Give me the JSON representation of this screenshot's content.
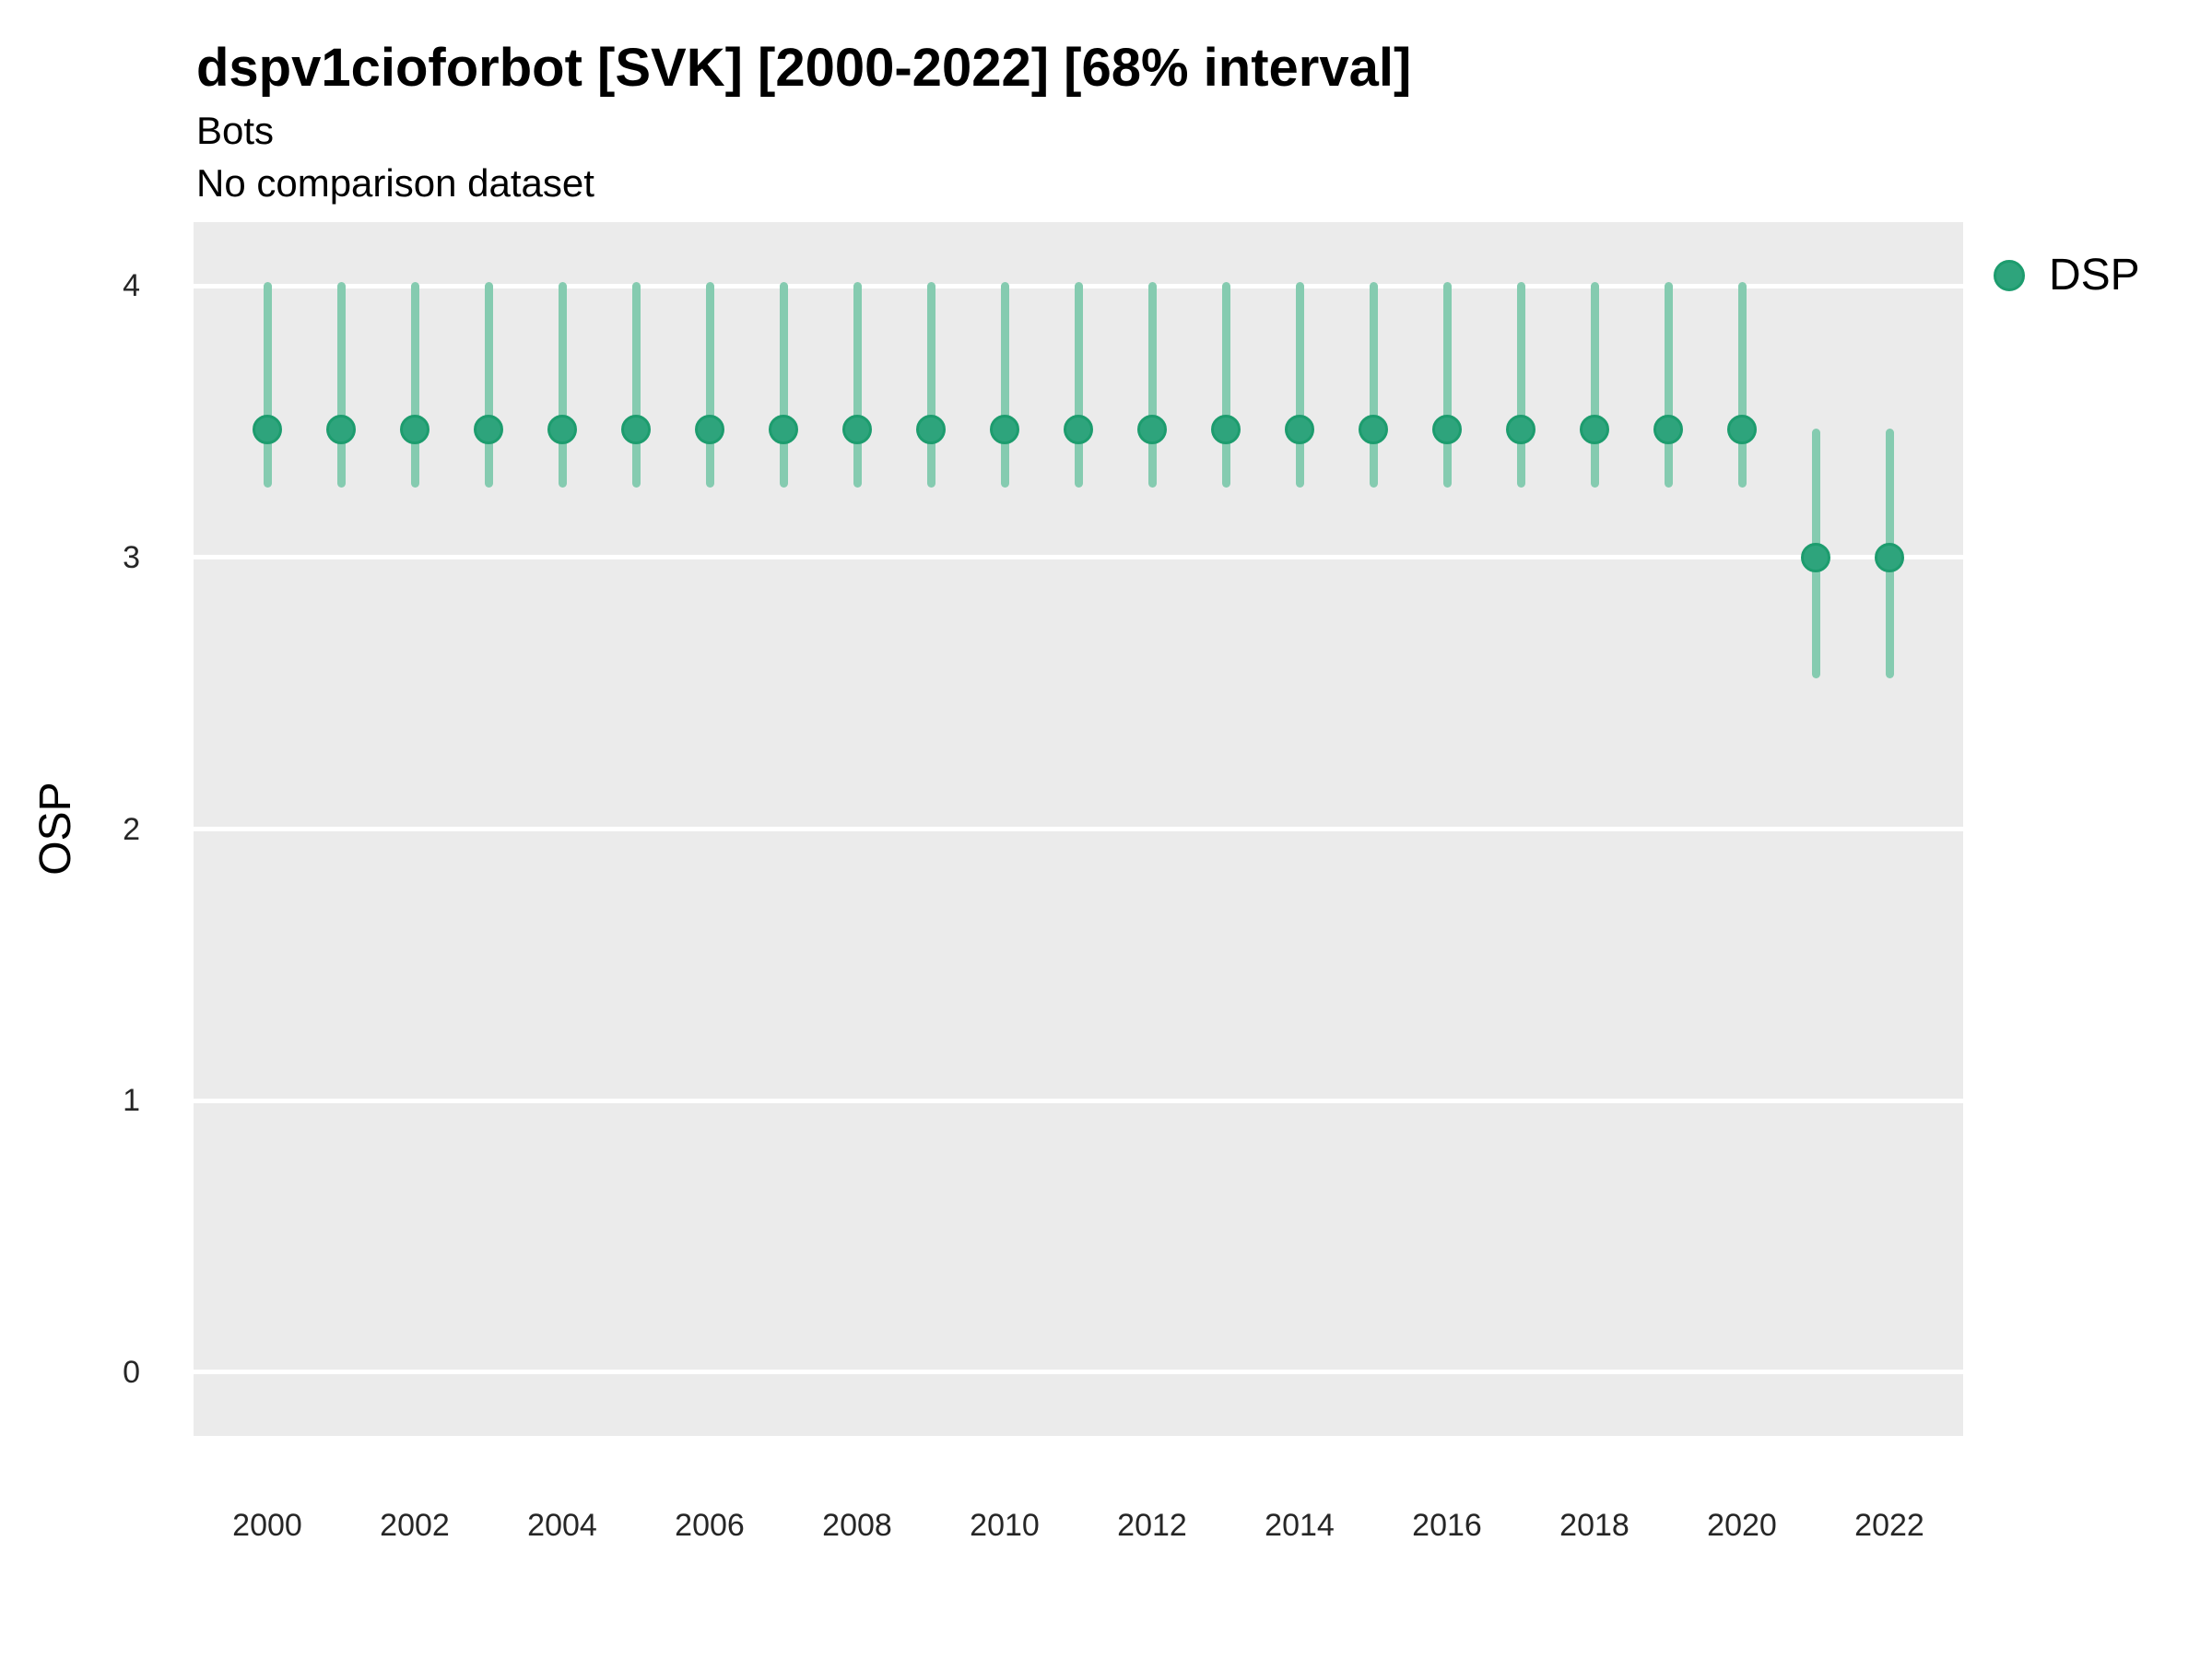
{
  "header": {
    "title": "dspv1cioforbot [SVK] [2000-2022] [68% interval]",
    "subtitle": "Bots",
    "comparison_note": "No comparison dataset"
  },
  "legend": {
    "label": "DSP",
    "marker_icon": "filled-circle-icon"
  },
  "colors": {
    "point_fill": "#2ea47c",
    "point_stroke": "#1d9c6e",
    "interval_bar": "#85cbb0",
    "panel_background": "#ebebeb",
    "gridline": "#ffffff",
    "title_text": "#000000",
    "tick_text": "#262626"
  },
  "chart_data": {
    "type": "scatter",
    "title": "dspv1cioforbot [SVK] [2000-2022] [68% interval]",
    "subtitle": "Bots",
    "note": "No comparison dataset",
    "interval": "68%",
    "xlabel": "",
    "ylabel": "OSP",
    "x_ticks": [
      2000,
      2002,
      2004,
      2006,
      2008,
      2010,
      2012,
      2014,
      2016,
      2018,
      2020,
      2022
    ],
    "y_ticks": [
      0,
      1,
      2,
      3,
      4
    ],
    "xlim": [
      1999,
      2023
    ],
    "ylim": [
      -0.235,
      4.235
    ],
    "grid": "major-horizontal-only",
    "legend_position": "right-top",
    "series": [
      {
        "name": "DSP",
        "x": [
          2000,
          2001,
          2002,
          2003,
          2004,
          2005,
          2006,
          2007,
          2008,
          2009,
          2010,
          2011,
          2012,
          2013,
          2014,
          2015,
          2016,
          2017,
          2018,
          2019,
          2020,
          2021,
          2022
        ],
        "y": [
          3.47,
          3.47,
          3.47,
          3.47,
          3.47,
          3.47,
          3.47,
          3.47,
          3.47,
          3.47,
          3.47,
          3.47,
          3.47,
          3.47,
          3.47,
          3.47,
          3.47,
          3.47,
          3.47,
          3.47,
          3.47,
          3.0,
          3.0
        ],
        "ymin": [
          3.27,
          3.27,
          3.27,
          3.27,
          3.27,
          3.27,
          3.27,
          3.27,
          3.27,
          3.27,
          3.27,
          3.27,
          3.27,
          3.27,
          3.27,
          3.27,
          3.27,
          3.27,
          3.27,
          3.27,
          3.27,
          2.57,
          2.57
        ],
        "ymax": [
          4.0,
          4.0,
          4.0,
          4.0,
          4.0,
          4.0,
          4.0,
          4.0,
          4.0,
          4.0,
          4.0,
          4.0,
          4.0,
          4.0,
          4.0,
          4.0,
          4.0,
          4.0,
          4.0,
          4.0,
          4.0,
          3.46,
          3.46
        ]
      }
    ]
  }
}
